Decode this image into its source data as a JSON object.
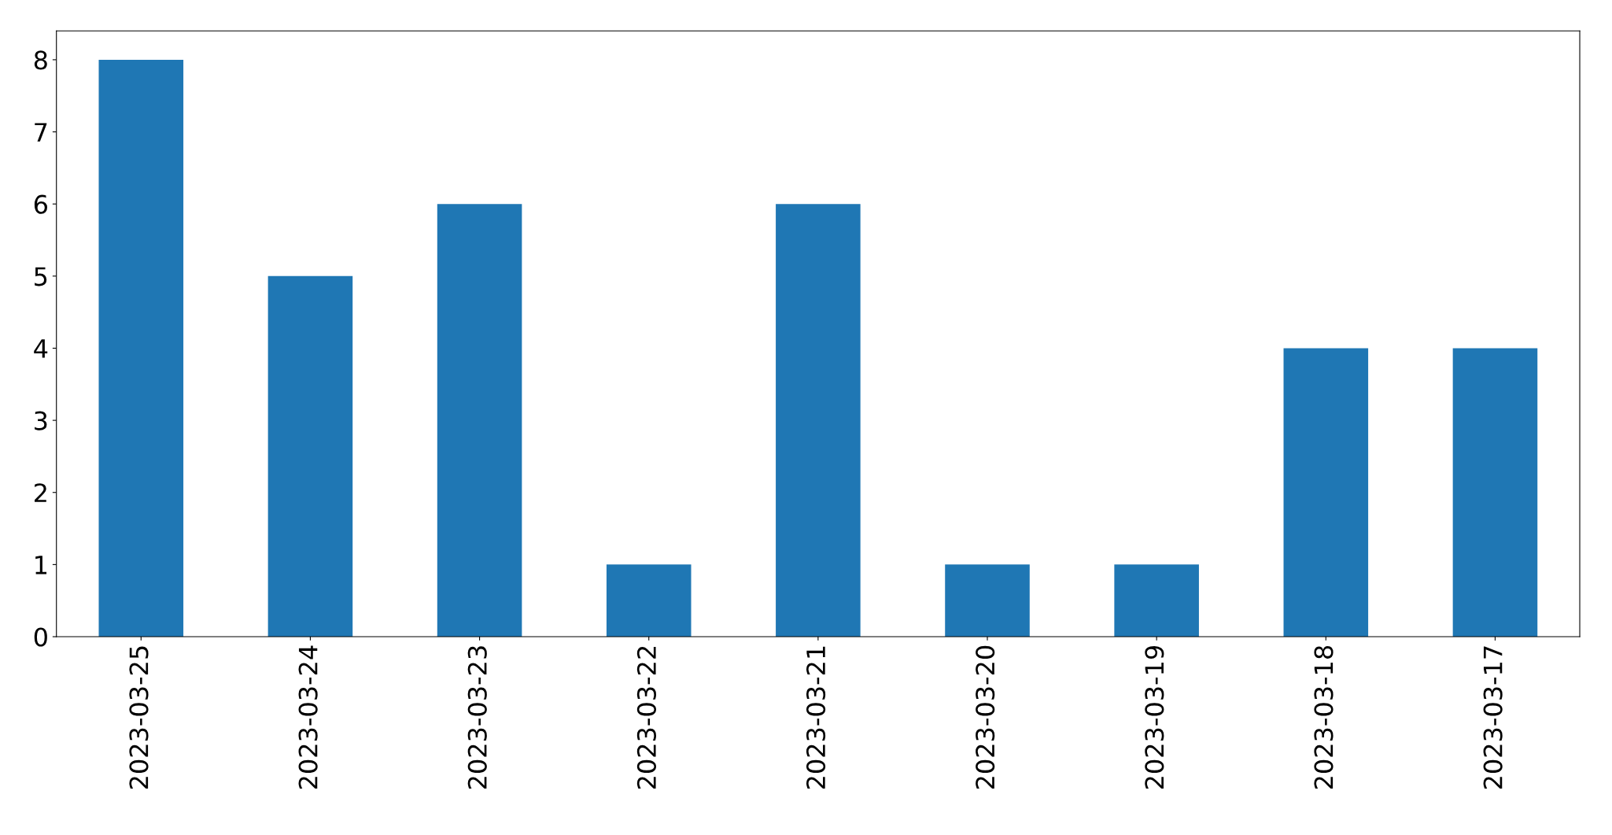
{
  "chart_data": {
    "type": "bar",
    "categories": [
      "2023-03-25",
      "2023-03-24",
      "2023-03-23",
      "2023-03-22",
      "2023-03-21",
      "2023-03-20",
      "2023-03-19",
      "2023-03-18",
      "2023-03-17"
    ],
    "values": [
      8,
      5,
      6,
      1,
      6,
      1,
      1,
      4,
      4
    ],
    "color": "#1f77b4",
    "ylim": [
      0,
      8.4
    ],
    "yticks": [
      0,
      1,
      2,
      3,
      4,
      5,
      6,
      7,
      8
    ],
    "grid": false,
    "legend": false
  }
}
